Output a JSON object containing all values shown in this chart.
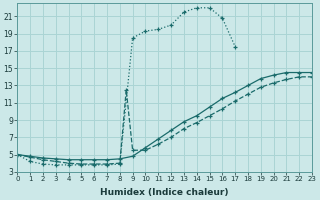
{
  "background_color": "#cce8e8",
  "grid_color": "#aad4d4",
  "line_color": "#1a6b6b",
  "xlabel": "Humidex (Indice chaleur)",
  "ylim": [
    3,
    22.5
  ],
  "xlim": [
    0,
    23
  ],
  "yticks": [
    3,
    5,
    7,
    9,
    11,
    13,
    15,
    17,
    19,
    21
  ],
  "xticks": [
    0,
    1,
    2,
    3,
    4,
    5,
    6,
    7,
    8,
    9,
    10,
    11,
    12,
    13,
    14,
    15,
    16,
    17,
    18,
    19,
    20,
    21,
    22,
    23
  ],
  "curve1_x": [
    0,
    1,
    2,
    3,
    4,
    5,
    6,
    7,
    8,
    9,
    10,
    11,
    12,
    13,
    14,
    15,
    16,
    17
  ],
  "curve1_y": [
    5.0,
    4.2,
    3.9,
    3.8,
    3.8,
    3.8,
    3.8,
    3.8,
    3.9,
    18.5,
    19.3,
    19.5,
    20.0,
    21.5,
    22.0,
    22.0,
    20.8,
    17.5
  ],
  "curve2_x": [
    0,
    1,
    2,
    3,
    4,
    5,
    6,
    7,
    8,
    9,
    10,
    11,
    12,
    13,
    14,
    15,
    16,
    17,
    18,
    19,
    20,
    21,
    22,
    23
  ],
  "curve2_y": [
    5.0,
    4.8,
    4.6,
    4.5,
    4.4,
    4.4,
    4.4,
    4.4,
    4.5,
    4.8,
    5.8,
    6.8,
    7.8,
    8.8,
    9.5,
    10.5,
    11.5,
    12.2,
    13.0,
    13.8,
    14.2,
    14.5,
    14.5,
    14.5
  ],
  "curve3_x": [
    0,
    1,
    2,
    3,
    4,
    5,
    6,
    7,
    8,
    8.5,
    9,
    10,
    11,
    12,
    13,
    14,
    15,
    16,
    17,
    18,
    19,
    20,
    21,
    22,
    23
  ],
  "curve3_y": [
    5.0,
    4.7,
    4.4,
    4.2,
    4.0,
    3.9,
    3.9,
    3.9,
    4.0,
    12.5,
    5.5,
    5.5,
    6.2,
    7.0,
    8.0,
    8.7,
    9.5,
    10.3,
    11.2,
    12.0,
    12.8,
    13.3,
    13.7,
    14.0,
    14.0
  ]
}
